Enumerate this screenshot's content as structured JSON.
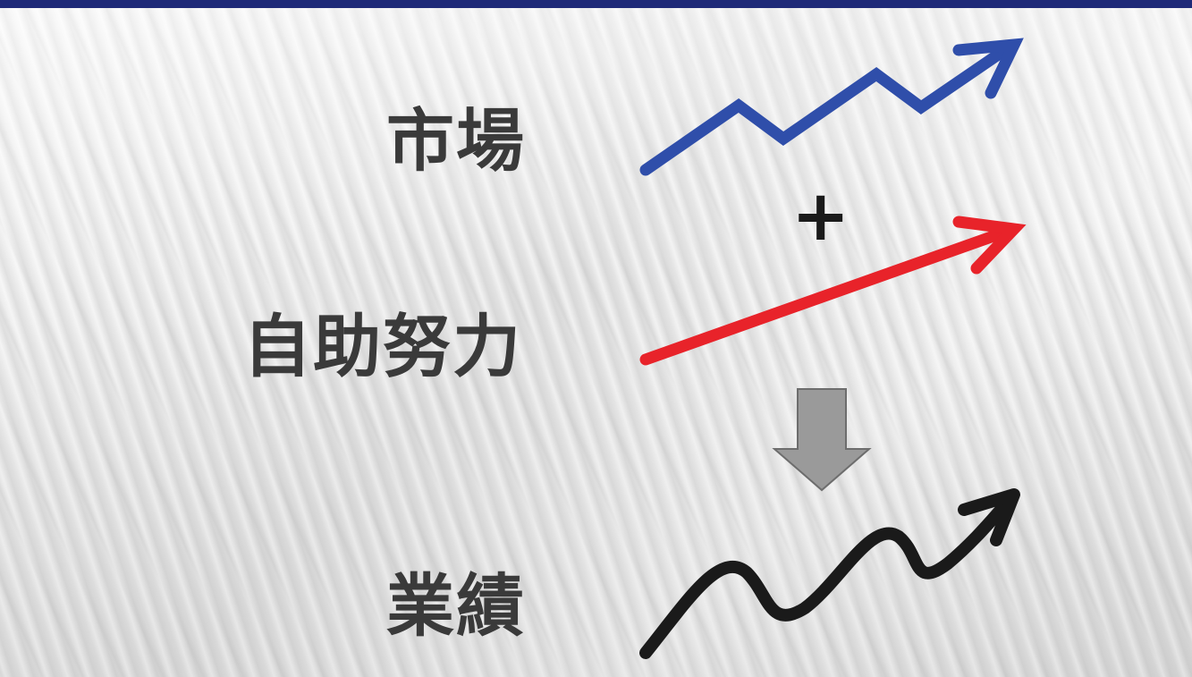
{
  "header": {
    "bar_color": "#1f2a78"
  },
  "labels": {
    "market": "市場",
    "effort": "自助努力",
    "result": "業績"
  },
  "operator": {
    "plus": "+"
  },
  "arrows": {
    "market_arrow": {
      "color": "#2f4eaa",
      "icon": "zigzag-up-arrow-icon"
    },
    "effort_arrow": {
      "color": "#e8232a",
      "icon": "straight-up-arrow-icon"
    },
    "down_arrow": {
      "color": "#9a9a9a",
      "icon": "down-arrow-icon"
    },
    "result_arrow": {
      "color": "#1a1a1a",
      "icon": "wavy-up-arrow-icon"
    }
  }
}
